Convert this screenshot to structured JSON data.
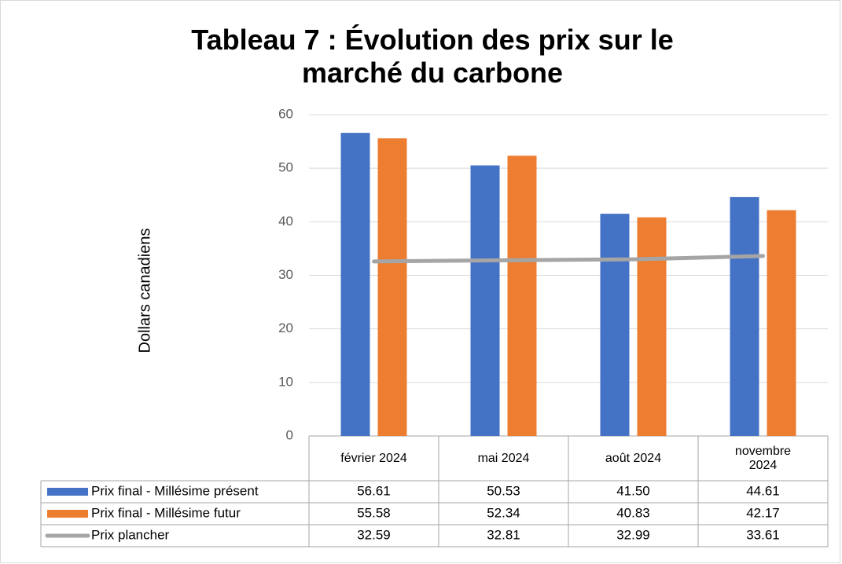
{
  "chart_data": {
    "type": "bar",
    "title": "Tableau 7 : Évolution des prix sur le marché du carbone",
    "y_label": "Dollars canadiens",
    "categories": [
      "février 2024",
      "mai 2024",
      "août 2024",
      "novembre 2024"
    ],
    "series": [
      {
        "name": "Prix final - Millésime présent",
        "type": "bar",
        "color": "#4472c4",
        "values": [
          56.61,
          50.53,
          41.5,
          44.61
        ],
        "value_labels": [
          "56.61",
          "50.53",
          "41.50",
          "44.61"
        ]
      },
      {
        "name": "Prix final - Millésime futur",
        "type": "bar",
        "color": "#ed7d31",
        "values": [
          55.58,
          52.34,
          40.83,
          42.17
        ],
        "value_labels": [
          "55.58",
          "52.34",
          "40.83",
          "42.17"
        ]
      },
      {
        "name": "Prix plancher",
        "type": "line",
        "color": "#a5a5a5",
        "values": [
          32.59,
          32.81,
          32.99,
          33.61
        ],
        "value_labels": [
          "32.59",
          "32.81",
          "32.99",
          "33.61"
        ]
      }
    ],
    "ylim": [
      0,
      60
    ],
    "yticks": [
      0,
      10,
      20,
      30,
      40,
      50,
      60
    ],
    "grid": true
  }
}
